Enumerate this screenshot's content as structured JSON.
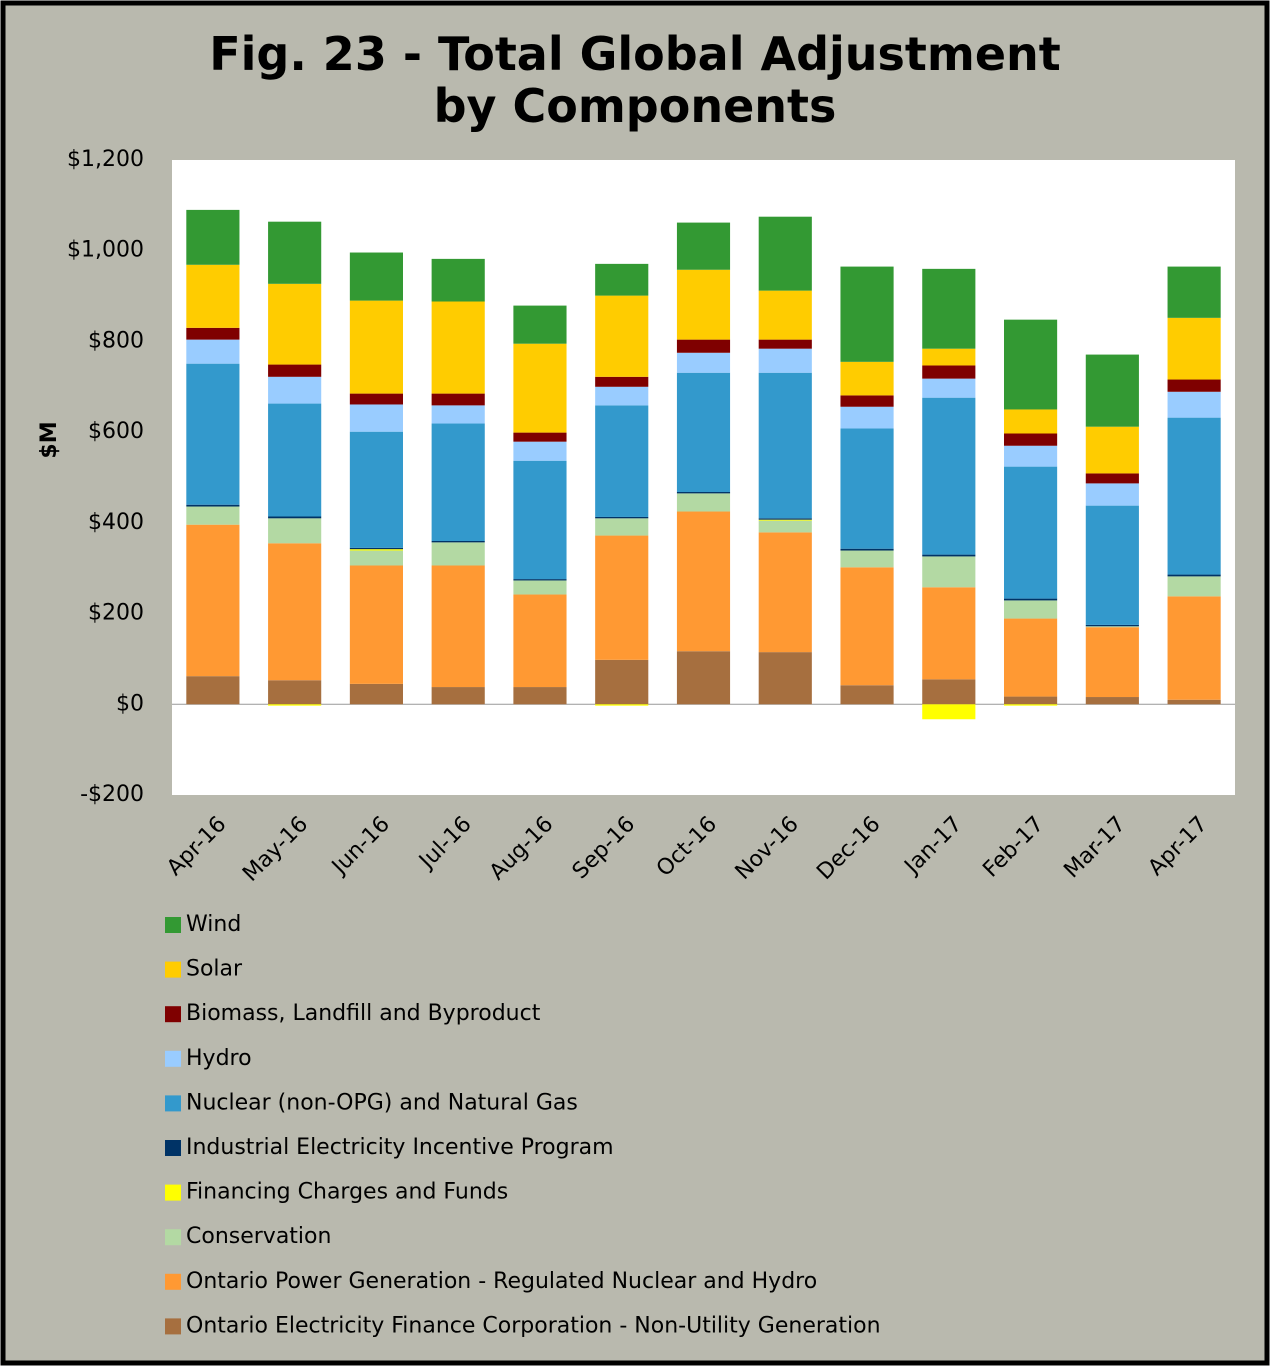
{
  "chart_data": {
    "type": "stacked_bar",
    "title": "Fig. 23 - Total Global Adjustment by Components",
    "y_label": "$M",
    "categories": [
      "Apr-16",
      "May-16",
      "Jun-16",
      "Jul-16",
      "Aug-16",
      "Sep-16",
      "Oct-16",
      "Nov-16",
      "Dec-16",
      "Jan-17",
      "Feb-17",
      "Mar-17",
      "Apr-17"
    ],
    "series": [
      {
        "name": "Wind",
        "color": "#339933",
        "values": [
          121,
          137,
          106,
          94,
          84,
          70,
          104,
          163,
          210,
          176,
          198,
          159,
          113
        ]
      },
      {
        "name": "Solar",
        "color": "#ffcc00",
        "values": [
          139,
          178,
          205,
          203,
          196,
          179,
          154,
          108,
          74,
          37,
          53,
          103,
          136
        ]
      },
      {
        "name": "Biomass, Landfill and Byproduct",
        "color": "#7f0000",
        "values": [
          26,
          27,
          24,
          26,
          20,
          22,
          29,
          20,
          25,
          29,
          27,
          22,
          27
        ]
      },
      {
        "name": "Hydro",
        "color": "#99ccff",
        "values": [
          53,
          59,
          60,
          40,
          42,
          41,
          44,
          53,
          48,
          42,
          46,
          49,
          57
        ]
      },
      {
        "name": "Nuclear (non-OPG) and Natural Gas",
        "color": "#3399cc",
        "values": [
          311,
          249,
          256,
          259,
          261,
          246,
          263,
          321,
          265,
          346,
          291,
          263,
          346
        ]
      },
      {
        "name": "Industrial Electricity Incentive Program",
        "color": "#003366",
        "values": [
          4,
          4,
          3,
          3,
          3,
          3,
          3,
          3,
          4,
          4,
          4,
          3,
          4
        ]
      },
      {
        "name": "Financing Charges and Funds",
        "color": "#ffff00",
        "values": [
          0,
          -3,
          3,
          0,
          0,
          -3,
          0,
          2,
          0,
          -33,
          -3,
          0,
          0
        ]
      },
      {
        "name": "Conservation",
        "color": "#b3d9a3",
        "values": [
          40,
          55,
          33,
          51,
          31,
          38,
          40,
          26,
          37,
          68,
          40,
          2,
          44
        ]
      },
      {
        "name": "Ontario Power Generation - Regulated Nuclear and Hydro",
        "color": "#ff9933",
        "values": [
          334,
          302,
          261,
          268,
          204,
          274,
          308,
          264,
          260,
          203,
          172,
          154,
          228
        ]
      },
      {
        "name": "Ontario Electricity Finance Corporation - Non-Utility Generation",
        "color": "#a66f3f",
        "values": [
          62,
          53,
          45,
          38,
          38,
          98,
          117,
          115,
          42,
          55,
          17,
          16,
          10
        ]
      }
    ],
    "ylim": [
      -200,
      1200
    ],
    "yticks": [
      {
        "value": -200,
        "label": "-$200"
      },
      {
        "value": 0,
        "label": "$0"
      },
      {
        "value": 200,
        "label": "$200"
      },
      {
        "value": 400,
        "label": "$400"
      },
      {
        "value": 600,
        "label": "$600"
      },
      {
        "value": 800,
        "label": "$800"
      },
      {
        "value": 1000,
        "label": "$1,000"
      },
      {
        "value": 1200,
        "label": "$1,200"
      }
    ],
    "grid": false,
    "legend": "bottom"
  }
}
